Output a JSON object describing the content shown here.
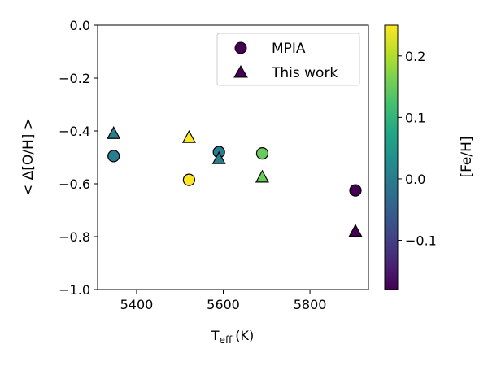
{
  "chart_data": {
    "type": "scatter",
    "xlabel_main": "T",
    "xlabel_sub": "eff",
    "xlabel_unit": "(K)",
    "ylabel": "< Δ[O/H] >",
    "xlim": [
      5310,
      5935
    ],
    "ylim": [
      -1.0,
      0.0
    ],
    "xticks": [
      5400,
      5600,
      5800
    ],
    "yticks": [
      0.0,
      -0.2,
      -0.4,
      -0.6,
      -0.8,
      -1.0
    ],
    "ytick_labels": [
      "0.0",
      "−0.2",
      "−0.4",
      "−0.6",
      "−0.8",
      "−1.0"
    ],
    "legend_position": "top-right",
    "series": [
      {
        "name": "MPIA",
        "marker": "circle",
        "points": [
          {
            "x": 5347,
            "y": -0.495,
            "c": 0.0
          },
          {
            "x": 5521,
            "y": -0.585,
            "c": 0.25
          },
          {
            "x": 5590,
            "y": -0.48,
            "c": 0.0
          },
          {
            "x": 5690,
            "y": -0.485,
            "c": 0.15
          },
          {
            "x": 5905,
            "y": -0.625,
            "c": -0.18
          }
        ]
      },
      {
        "name": "This work",
        "marker": "triangle",
        "points": [
          {
            "x": 5347,
            "y": -0.41,
            "c": 0.0
          },
          {
            "x": 5521,
            "y": -0.425,
            "c": 0.25
          },
          {
            "x": 5590,
            "y": -0.505,
            "c": 0.0
          },
          {
            "x": 5690,
            "y": -0.575,
            "c": 0.15
          },
          {
            "x": 5905,
            "y": -0.78,
            "c": -0.18
          }
        ]
      }
    ],
    "colorbar": {
      "label": "[Fe/H]",
      "cmap": "viridis",
      "range": [
        -0.18,
        0.25
      ],
      "ticks": [
        0.2,
        0.1,
        0.0,
        -0.1
      ],
      "tick_labels": [
        "0.2",
        "0.1",
        "0.0",
        "−0.1"
      ]
    }
  }
}
